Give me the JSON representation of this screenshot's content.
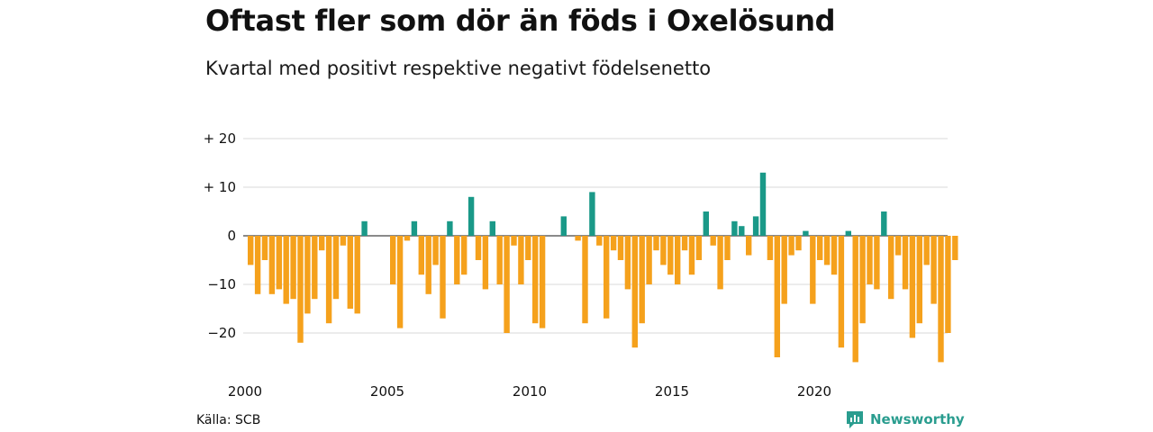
{
  "header": {
    "title": "Oftast fler som dör än föds i Oxelösund",
    "subtitle": "Kvartal med positivt respektive negativt födelsenetto"
  },
  "footer": {
    "source": "Källa: SCB",
    "brand": "Newsworthy"
  },
  "colors": {
    "positive": "#1a9988",
    "negative": "#f5a11c",
    "grid": "#d9d9d9",
    "brand": "#2a9d8f"
  },
  "chart_data": {
    "type": "bar",
    "title": "Oftast fler som dör än föds i Oxelösund",
    "subtitle": "Kvartal med positivt respektive negativt födelsenetto",
    "xlabel": "",
    "ylabel": "",
    "ylim": [
      -28,
      22
    ],
    "yticks": [
      {
        "value": 20,
        "label": "+ 20"
      },
      {
        "value": 10,
        "label": "+ 10"
      },
      {
        "value": 0,
        "label": "0"
      },
      {
        "value": -10,
        "label": "−10"
      },
      {
        "value": -20,
        "label": "−20"
      }
    ],
    "xticks": [
      {
        "year": 2000,
        "label": "2000"
      },
      {
        "year": 2005,
        "label": "2005"
      },
      {
        "year": 2010,
        "label": "2010"
      },
      {
        "year": 2015,
        "label": "2015"
      },
      {
        "year": 2020,
        "label": "2020"
      }
    ],
    "grid": true,
    "legend": "none",
    "first_quarter": "2000 Q1",
    "values": [
      -6,
      -12,
      -5,
      -12,
      -11,
      -14,
      -13,
      -22,
      -16,
      -13,
      -3,
      -18,
      -13,
      -2,
      -15,
      -16,
      3,
      0,
      0,
      0,
      -10,
      -19,
      -1,
      3,
      -8,
      -12,
      -6,
      -17,
      3,
      -10,
      -8,
      8,
      -5,
      -11,
      3,
      -10,
      -20,
      -2,
      -10,
      -5,
      -18,
      -19,
      0,
      0,
      4,
      0,
      -1,
      -18,
      9,
      -2,
      -17,
      -3,
      -5,
      -11,
      -23,
      -18,
      -10,
      -3,
      -6,
      -8,
      -10,
      -3,
      -8,
      -5,
      5,
      -2,
      -11,
      -5,
      3,
      2,
      -4,
      4,
      13,
      -5,
      -25,
      -14,
      -4,
      -3,
      1,
      -14,
      -5,
      -6,
      -8,
      -23,
      1,
      -26,
      -18,
      -10,
      -11,
      5,
      -13,
      -4,
      -11,
      -21,
      -18,
      -6,
      -14,
      -26,
      -20,
      -5
    ]
  }
}
